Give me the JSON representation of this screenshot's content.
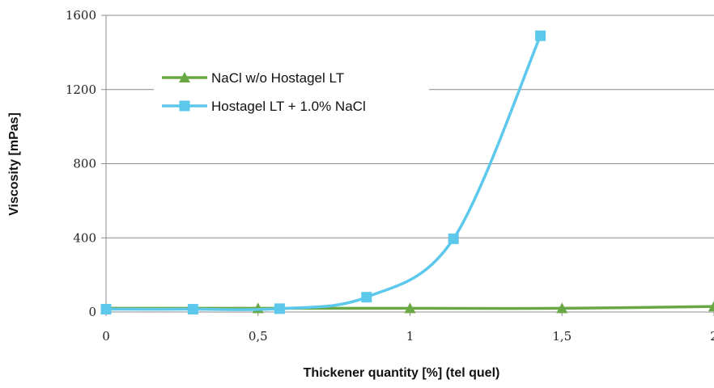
{
  "chart_data": {
    "type": "line",
    "title": "",
    "xlabel": "Thickener quantity [%] (tel quel)",
    "ylabel": "Viscosity [mPas]",
    "xlim": [
      0,
      2
    ],
    "ylim": [
      0,
      1600
    ],
    "x_ticks": [
      "0",
      "0,5",
      "1",
      "1,5",
      "2"
    ],
    "y_ticks": [
      "0",
      "400",
      "800",
      "1200",
      "1600"
    ],
    "grid": true,
    "legend_placement": "upper-left",
    "series": [
      {
        "name": "NaCl w/o Hostagel LT",
        "color": "#6aa845",
        "marker": "triangle",
        "x": [
          0,
          0.5,
          1,
          1.5,
          2
        ],
        "y": [
          20,
          20,
          20,
          20,
          30
        ]
      },
      {
        "name": "Hostagel LT + 1.0% NaCl",
        "color": "#5bc8ec",
        "marker": "square",
        "x": [
          0,
          0.286,
          0.571,
          0.857,
          1.143,
          1.429
        ],
        "y": [
          15,
          15,
          18,
          80,
          395,
          1490
        ]
      }
    ]
  }
}
